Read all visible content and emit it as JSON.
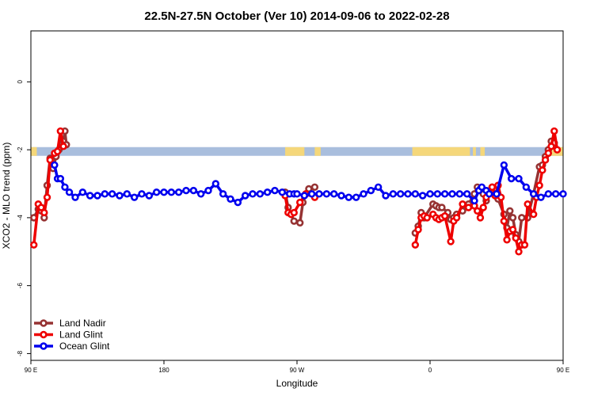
{
  "chart_data": {
    "type": "line",
    "title": "22.5N-27.5N October (Ver 10)   2014-09-06 to 2022-02-28",
    "xlabel": "Longitude",
    "ylabel": "XCO2 - MLO trend (ppm)",
    "xlim": [
      90,
      450
    ],
    "ylim": [
      -8.2,
      1.5
    ],
    "x_ticks": [
      {
        "value": 90,
        "label": "90 E"
      },
      {
        "value": 180,
        "label": "180"
      },
      {
        "value": 270,
        "label": "90 W"
      },
      {
        "value": 360,
        "label": "0"
      },
      {
        "value": 450,
        "label": "90 E"
      }
    ],
    "y_ticks": [
      {
        "value": 0,
        "label": "0"
      },
      {
        "value": -2,
        "label": "-2"
      },
      {
        "value": -4,
        "label": "-4"
      },
      {
        "value": -6,
        "label": "-6"
      },
      {
        "value": -8,
        "label": "-8"
      }
    ],
    "grid": false,
    "legend_position": "bottom-left",
    "surface_band": {
      "y_center": -2.05,
      "ocean_color": "#a9bedd",
      "land_color": "#f5d77a",
      "land_ranges": [
        [
          262,
          275
        ],
        [
          282,
          286
        ],
        [
          348,
          387
        ],
        [
          389,
          391
        ],
        [
          394,
          397
        ],
        [
          438,
          454
        ]
      ]
    },
    "series": [
      {
        "name": "Land Nadir",
        "color": "#963333",
        "x": [
          92,
          95,
          97,
          99,
          101,
          103,
          105,
          107,
          109,
          111,
          112,
          113,
          114,
          262,
          264,
          266,
          268,
          272,
          274,
          276,
          278,
          282,
          350,
          352,
          354,
          356,
          362,
          364,
          366,
          368,
          372,
          374,
          376,
          378,
          382,
          386,
          390,
          392,
          394,
          396,
          398,
          402,
          404,
          406,
          410,
          412,
          414,
          416,
          418,
          420,
          422,
          426,
          430,
          434,
          436,
          438,
          440,
          442,
          444
        ],
        "y": [
          -4.0,
          -3.75,
          -3.8,
          -4.0,
          -3.05,
          -2.25,
          -2.55,
          -2.2,
          -2.0,
          -1.8,
          -1.75,
          -1.45,
          -1.85,
          -3.25,
          -3.7,
          -3.9,
          -4.1,
          -4.15,
          -3.55,
          -3.3,
          -3.15,
          -3.1,
          -4.45,
          -4.25,
          -3.85,
          -4.0,
          -3.6,
          -3.65,
          -3.7,
          -3.7,
          -3.85,
          -4.05,
          -4.0,
          -3.9,
          -3.8,
          -3.6,
          -3.3,
          -3.1,
          -3.15,
          -3.3,
          -3.5,
          -3.1,
          -3.3,
          -3.45,
          -3.9,
          -4.3,
          -3.8,
          -4.0,
          -4.5,
          -4.7,
          -4.0,
          -4.0,
          -3.3,
          -2.5,
          -2.45,
          -2.2,
          -2.0,
          -1.75,
          -1.8
        ]
      },
      {
        "name": "Land Glint",
        "color": "#ee0000",
        "x": [
          92,
          95,
          97,
          99,
          101,
          103,
          106,
          108,
          110,
          112,
          262,
          264,
          266,
          268,
          272,
          276,
          282,
          350,
          352,
          354,
          356,
          358,
          362,
          364,
          366,
          368,
          370,
          374,
          376,
          378,
          382,
          386,
          390,
          392,
          394,
          396,
          398,
          402,
          404,
          406,
          408,
          410,
          412,
          414,
          416,
          418,
          420,
          422,
          424,
          426,
          430,
          432,
          434,
          436,
          438,
          440,
          442,
          444,
          446
        ],
        "y": [
          -4.8,
          -3.6,
          -3.7,
          -3.85,
          -3.4,
          -2.3,
          -2.1,
          -2.05,
          -1.45,
          -1.9,
          -3.35,
          -3.85,
          -3.9,
          -3.85,
          -3.55,
          -3.3,
          -3.4,
          -4.8,
          -4.35,
          -4.0,
          -3.95,
          -4.0,
          -3.9,
          -4.0,
          -4.05,
          -4.0,
          -3.95,
          -4.7,
          -4.1,
          -4.0,
          -3.6,
          -3.7,
          -3.65,
          -3.8,
          -4.0,
          -3.7,
          -3.4,
          -3.1,
          -3.35,
          -3.05,
          -3.4,
          -4.1,
          -4.65,
          -4.4,
          -4.35,
          -4.6,
          -5.0,
          -4.8,
          -4.8,
          -3.6,
          -3.9,
          -3.4,
          -3.05,
          -2.6,
          -2.3,
          -2.1,
          -1.9,
          -1.45,
          -2.0
        ]
      },
      {
        "name": "Ocean Glint",
        "color": "#0000ee",
        "x": [
          106,
          108,
          110,
          113,
          116,
          120,
          125,
          130,
          135,
          140,
          145,
          150,
          155,
          160,
          165,
          170,
          175,
          180,
          185,
          190,
          195,
          200,
          205,
          210,
          215,
          220,
          225,
          230,
          235,
          240,
          245,
          250,
          255,
          260,
          265,
          268,
          270,
          275,
          280,
          285,
          290,
          295,
          300,
          305,
          310,
          315,
          320,
          325,
          330,
          335,
          340,
          345,
          350,
          355,
          360,
          365,
          370,
          375,
          380,
          385,
          390,
          393,
          395,
          398,
          400,
          405,
          410,
          415,
          420,
          425,
          430,
          435,
          440,
          445,
          450
        ],
        "y": [
          -2.45,
          -2.85,
          -2.85,
          -3.1,
          -3.25,
          -3.4,
          -3.25,
          -3.35,
          -3.35,
          -3.3,
          -3.3,
          -3.35,
          -3.3,
          -3.4,
          -3.3,
          -3.35,
          -3.25,
          -3.25,
          -3.25,
          -3.25,
          -3.2,
          -3.2,
          -3.3,
          -3.2,
          -3.0,
          -3.3,
          -3.45,
          -3.55,
          -3.35,
          -3.3,
          -3.3,
          -3.25,
          -3.2,
          -3.25,
          -3.3,
          -3.3,
          -3.3,
          -3.35,
          -3.3,
          -3.3,
          -3.3,
          -3.3,
          -3.35,
          -3.4,
          -3.4,
          -3.3,
          -3.2,
          -3.1,
          -3.35,
          -3.3,
          -3.3,
          -3.3,
          -3.3,
          -3.35,
          -3.3,
          -3.3,
          -3.3,
          -3.3,
          -3.3,
          -3.3,
          -3.5,
          -3.2,
          -3.1,
          -3.2,
          -3.3,
          -3.3,
          -2.45,
          -2.85,
          -2.85,
          -3.1,
          -3.3,
          -3.4,
          -3.3,
          -3.3,
          -3.3
        ]
      }
    ]
  }
}
